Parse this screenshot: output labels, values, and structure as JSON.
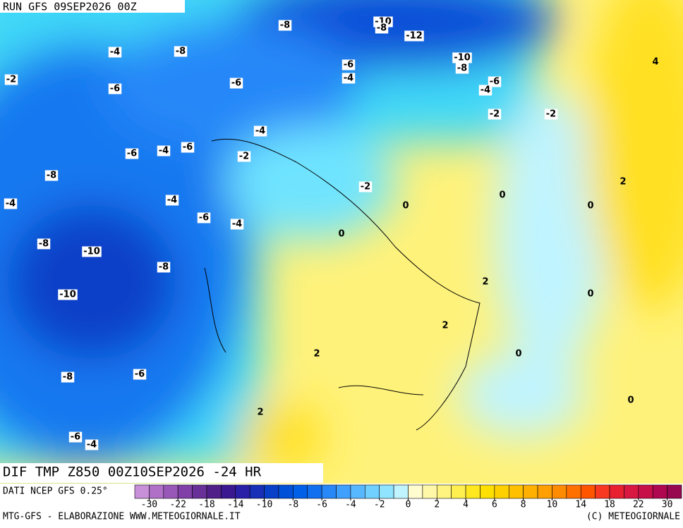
{
  "header": {
    "run": "RUN GFS 09SEP2026 00Z"
  },
  "map": {
    "contour_labels": [
      -8,
      -10,
      -8,
      -12,
      -4,
      -8,
      -10,
      -8,
      -2,
      -6,
      -4,
      -6,
      -6,
      -6,
      -4,
      -2,
      -2,
      -4,
      -6,
      -4,
      -6,
      -2,
      -8,
      -2,
      0,
      0,
      0,
      -4,
      -4,
      -6,
      -4,
      0,
      -8,
      -10,
      -8,
      2,
      0,
      -10,
      2,
      2,
      0,
      -8,
      -6,
      2,
      0,
      -6,
      -4,
      4,
      2
    ]
  },
  "footer": {
    "title": "DIF TMP Z850 00Z10SEP2026 -24 HR",
    "source": "DATI NCEP GFS 0.25°",
    "credit_left": "MTG-GFS - ELABORAZIONE WWW.METEOGIORNALE.IT",
    "credit_right": "(C) METEOGIORNALE"
  },
  "colorbar": {
    "ticks": [
      -30,
      -22,
      -18,
      -14,
      -10,
      -8,
      -6,
      -4,
      -2,
      0,
      2,
      4,
      6,
      8,
      10,
      14,
      18,
      22,
      30
    ],
    "colors": [
      "#c890d8",
      "#b070c8",
      "#9858b8",
      "#8040a8",
      "#683098",
      "#502088",
      "#3a1890",
      "#2a20a8",
      "#1830b8",
      "#0840c8",
      "#0050d8",
      "#0060e8",
      "#1070f0",
      "#2888f8",
      "#40a0ff",
      "#58b8ff",
      "#70d0ff",
      "#90e4ff",
      "#c0f4ff",
      "#fffcd0",
      "#fff8a8",
      "#fff480",
      "#fff050",
      "#ffe820",
      "#ffe000",
      "#ffd000",
      "#ffc000",
      "#ffb000",
      "#ffa000",
      "#ff8c00",
      "#ff7000",
      "#ff5400",
      "#f83820",
      "#e82030",
      "#d81840",
      "#c81048",
      "#b00850",
      "#980850"
    ]
  }
}
